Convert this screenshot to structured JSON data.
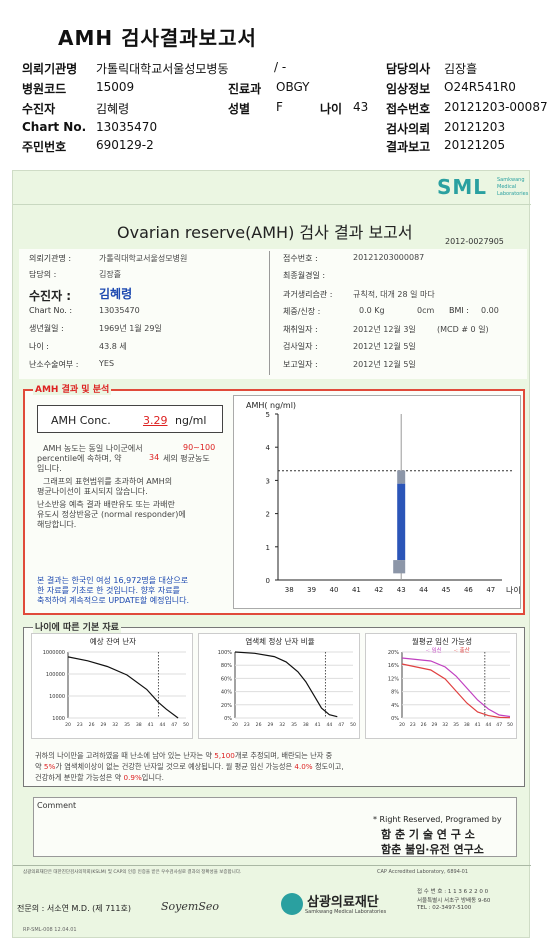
{
  "title": "AMH 검사결과보고서",
  "header": {
    "institution_label": "의뢰기관명",
    "institution": "가톨릭대학교서울성모병동",
    "ward_value": "/ -",
    "doctor_label": "담당의사",
    "doctor": "김장흘",
    "hospital_code_label": "병원코드",
    "hospital_code": "15009",
    "dept_label": "진료과",
    "dept": "OBGY",
    "clinical_label": "임상정보",
    "clinical": "O24R541R0",
    "patient_label": "수진자",
    "patient": "김혜령",
    "sex_label": "성별",
    "sex": "F",
    "age_label": "나이",
    "age": "43",
    "receipt_label": "접수번호",
    "receipt": "20121203-00087",
    "chart_label": "Chart No.",
    "chart": "13035470",
    "request_date_label": "검사의뢰",
    "request_date": "20121203",
    "rrn_label": "주민번호",
    "rrn": "690129-2",
    "result_date_label": "결과보고",
    "result_date": "20121205"
  },
  "report": {
    "logo": "SML",
    "logo_sub1": "Samkwang",
    "logo_sub2": "Medical",
    "logo_sub3": "Laboratories",
    "title": "Ovarian reserve(AMH) 검사 결과 보고서",
    "doc_no": "2012-0027905",
    "info": {
      "inst_label": "의뢰기관명 :",
      "inst": "가톨릭대학교서울성모병원",
      "doc_label": "담당의 :",
      "doc": "김장흘",
      "patient_label": "수진자 :",
      "patient": "김혜령",
      "chart_label": "Chart No. :",
      "chart": "13035470",
      "birth_label": "생년월일 :",
      "birth": "1969년 1월 29일",
      "age_label": "나이 :",
      "age": "43.8 세",
      "surgery_label": "난소수술여부 :",
      "surgery": "YES",
      "receipt_label": "접수번호 :",
      "receipt": "20121203000087",
      "menarche_label": "최종월경일 :",
      "menarche": "",
      "history_label": "과거생리습관 :",
      "history": "규칙적,  대개   28 일 마다",
      "body_label": "체중/신장 :",
      "weight": "0.0  Kg",
      "height": "0cm",
      "bmi_label": "BMI :",
      "bmi": "0.00",
      "collect_label": "채취일자 :",
      "collect": "2012년  12월  3일",
      "mcd": "(MCD #  0 일)",
      "test_label": "검사일자 :",
      "test": "2012년  12월  5일",
      "report_label": "보고일자 :",
      "report": "2012년  12월  5일"
    },
    "analysis": {
      "section": "AMH 결과 및 분석",
      "conc_label": "AMH Conc.",
      "conc_value": "3.29",
      "conc_unit": "ng/ml",
      "text1a": "AMH 농도는 동일 나이군에서",
      "text1b": "90~100",
      "text2a": "percentile에 속하며, 약",
      "text2b": "34",
      "text2c": "세의 평균농도",
      "text3": "입니다.",
      "text4": "그래프의 표현범위를 초과하여 AMH의",
      "text5": "평균나이선이 표시되지 않습니다.",
      "text6": "난소반응 예측 결과 배란유도 또는 과배란",
      "text7": "유도시 정상반응군 (normal responder)에",
      "text8": "해당합니다.",
      "note1": "본 결과는 한국인 여성 16,972명을 대상으로",
      "note2": "한 자료를 기초로 한 것입니다. 향후 자료를",
      "note3": "축적하여 계속적으로 UPDATE할 예정입니다."
    },
    "section2": "나이에 따른 기본 자료",
    "mini1_title": "예상 잔여 난자",
    "mini2_title": "염색체 정상 난자 비율",
    "mini3_title": "월평균 임신 가능성",
    "mini3_legend1": "-: 임신",
    "mini3_legend2": "-: 출산",
    "summary": {
      "l1a": "귀하의 나이만을 고려하였을 때 난소에 남아 있는 난자는 약",
      "l1b": "5,100",
      "l1c": "개로 추정되며, 배란되는 난자 중",
      "l2a": "약",
      "l2b": "5%",
      "l2c": "가 염색체이상이 없는 건강한 난자일 것으로 예상됩니다. 월 평균 임신 가능성은",
      "l2d": "4.0%",
      "l2e": "정도이고,",
      "l3a": "건강하게 분만할 가능성은 약",
      "l3b": "0.9%",
      "l3c": "입니다."
    },
    "comment_label": "Comment",
    "rights": "* Right Reserved, Programed by",
    "lab1": "함 춘 기 술 연 구 소",
    "lab2": "함춘 불임·유전 연구소",
    "footer_note": "삼광의료재단은 대한진단검사의학회(KSLM) 및 CAP의 인증 인증을 받은 우수검사실로 결과의 정확성을 보증합니다.",
    "cap": "CAP Accredited Laboratory, 6894-01",
    "specialist": "전문의 : 서소연 M.D. (제 711호)",
    "signature": "SoyemSeo",
    "foundation": "삼광의료재단",
    "foundation_en": "Samkwang Medical Laboratories",
    "contact1": "접 수 번 호 : 1 1 3 6 2 2 0 0",
    "contact2": "서울특별시 서초구 방배동 9-60",
    "contact3": "TEL : 02-3497-5100",
    "page_code": "RP-SML-008  12.04.01"
  },
  "chart_data": [
    {
      "type": "bar",
      "title": "",
      "ylabel": "AMH( ng/ml)",
      "xlabel": "나이",
      "categories": [
        "38",
        "39",
        "40",
        "41",
        "42",
        "43",
        "44",
        "45",
        "46",
        "47"
      ],
      "x_tick_labels": [
        "38",
        "39",
        "40",
        "41",
        "42",
        "43",
        "44",
        "45",
        "46",
        "47"
      ],
      "y_tick_labels": [
        "0",
        "1",
        "2",
        "3",
        "4",
        "5"
      ],
      "ylim": [
        0,
        5
      ],
      "highlight_category": "43",
      "patient_value": 3.29,
      "bar_range": [
        0.6,
        3.3
      ],
      "bar_split": 2.9,
      "colors": {
        "bar": "#2b55b8",
        "bar_top": "#8c96a8",
        "ref_line": "#333333"
      }
    },
    {
      "type": "line",
      "title": "예상 잔여 난자",
      "x_tick_labels": [
        "20",
        "23",
        "26",
        "29",
        "32",
        "35",
        "38",
        "41",
        "44",
        "47",
        "50"
      ],
      "y_tick_labels": [
        "1000",
        "10000",
        "100000",
        "1000000"
      ],
      "yscale": "log",
      "xlim": [
        20,
        50
      ],
      "ylim": [
        1000,
        1000000
      ],
      "x": [
        20,
        25,
        30,
        35,
        40,
        43,
        45,
        48
      ],
      "y": [
        600000,
        400000,
        220000,
        90000,
        20000,
        5100,
        2500,
        1000
      ]
    },
    {
      "type": "line",
      "title": "염색체 정상 난자 비율",
      "x_tick_labels": [
        "20",
        "23",
        "26",
        "29",
        "32",
        "35",
        "38",
        "41",
        "44",
        "47",
        "50"
      ],
      "y_tick_labels": [
        "0%",
        "20%",
        "40%",
        "60%",
        "80%",
        "100%"
      ],
      "xlim": [
        20,
        50
      ],
      "ylim": [
        0,
        100
      ],
      "x": [
        20,
        25,
        30,
        33,
        36,
        38,
        40,
        42,
        44,
        46
      ],
      "y": [
        100,
        98,
        93,
        85,
        70,
        55,
        35,
        15,
        5,
        2
      ]
    },
    {
      "type": "line",
      "title": "월평균 임신 가능성",
      "x_tick_labels": [
        "20",
        "23",
        "26",
        "29",
        "32",
        "35",
        "38",
        "41",
        "44",
        "47",
        "50"
      ],
      "y_tick_labels": [
        "0%",
        "4%",
        "8%",
        "12%",
        "16%",
        "20%"
      ],
      "xlim": [
        20,
        50
      ],
      "ylim": [
        0,
        22
      ],
      "series": [
        {
          "name": "임신",
          "x": [
            20,
            28,
            32,
            35,
            38,
            41,
            44,
            47,
            50
          ],
          "y": [
            20,
            19,
            17,
            14,
            10,
            6,
            3,
            1,
            0.5
          ],
          "color": "#c040c0"
        },
        {
          "name": "출산",
          "x": [
            20,
            28,
            32,
            35,
            38,
            41,
            44,
            47,
            50
          ],
          "y": [
            18,
            16,
            13,
            9,
            5,
            2,
            0.8,
            0.2,
            0.1
          ],
          "color": "#e04040"
        }
      ]
    }
  ]
}
